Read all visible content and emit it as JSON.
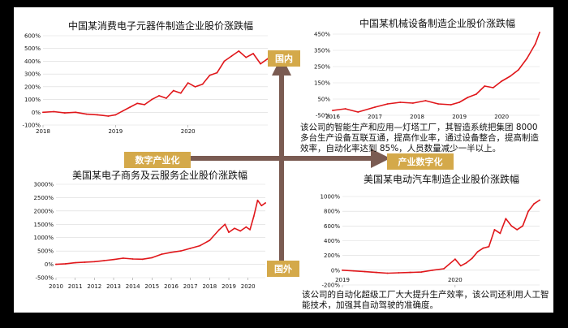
{
  "colors": {
    "series": "#e0171b",
    "axes_arrow": "#7a5b52",
    "tag_bg": "#d4a94a",
    "grid": "#d9d9d9"
  },
  "axis_labels": {
    "north": "国内",
    "south": "国外",
    "west": "数字产业化",
    "east": "产业数字化"
  },
  "captions": {
    "top_right": "该公司的智能生产和应用—灯塔工厂，其智造系统把集团 8000 多台生产设备互联互通，提高作业率，通过设备整合，提高制造效率，自动化率达到 85%，人员数量减少一半以上。",
    "bottom_right": "该公司的自动化超级工厂大大提升生产效率，该公司还利用人工智能技术，加强其自动驾驶的准确度。"
  },
  "chart_data": [
    {
      "id": "tl",
      "type": "line",
      "title": "中国某消费电子元器件制造企业股价涨跌幅",
      "xlabel": "",
      "ylabel": "",
      "x_ticks": [
        {
          "label": "2018",
          "x": 2018.0
        },
        {
          "label": "2019",
          "x": 2019.0
        },
        {
          "label": "2020",
          "x": 2020.0
        }
      ],
      "xlim": [
        2018.0,
        2021.1
      ],
      "y_ticks": [
        -100,
        0,
        100,
        200,
        300,
        400,
        500,
        600
      ],
      "y_tick_labels": [
        "-100%",
        "0%",
        "100%",
        "200%",
        "300%",
        "400%",
        "500%",
        "600%"
      ],
      "ylim": [
        -100,
        600
      ],
      "grid": true,
      "series": [
        {
          "x": [
            2018.0,
            2018.15,
            2018.3,
            2018.45,
            2018.6,
            2018.75,
            2018.9,
            2019.0,
            2019.1,
            2019.2,
            2019.3,
            2019.4,
            2019.5,
            2019.6,
            2019.7,
            2019.8,
            2019.9,
            2020.0,
            2020.1,
            2020.2,
            2020.3,
            2020.4,
            2020.5,
            2020.6,
            2020.7,
            2020.8,
            2020.9,
            2021.0,
            2021.1
          ],
          "y": [
            0,
            5,
            -5,
            0,
            -15,
            -20,
            -30,
            -20,
            10,
            40,
            70,
            60,
            100,
            130,
            110,
            170,
            150,
            230,
            200,
            220,
            290,
            310,
            400,
            440,
            480,
            430,
            460,
            380,
            420
          ]
        }
      ]
    },
    {
      "id": "tr",
      "type": "line",
      "title": "中国某机械设备制造企业股价涨跌幅",
      "xlabel": "",
      "ylabel": "",
      "x_ticks": [
        {
          "label": "2016",
          "x": 2016.0
        },
        {
          "label": "2017",
          "x": 2017.0
        },
        {
          "label": "2018",
          "x": 2018.0
        },
        {
          "label": "2019",
          "x": 2019.0
        },
        {
          "label": "2020",
          "x": 2020.0
        }
      ],
      "xlim": [
        2016.0,
        2020.9
      ],
      "y_ticks": [
        -50,
        50,
        150,
        250,
        350,
        450
      ],
      "y_tick_labels": [
        "-50%",
        "50%",
        "150%",
        "250%",
        "350%",
        "450%"
      ],
      "ylim": [
        -50,
        480
      ],
      "grid": true,
      "series": [
        {
          "x": [
            2016.0,
            2016.3,
            2016.6,
            2017.0,
            2017.3,
            2017.6,
            2017.9,
            2018.2,
            2018.5,
            2018.8,
            2019.0,
            2019.2,
            2019.4,
            2019.6,
            2019.8,
            2020.0,
            2020.2,
            2020.4,
            2020.6,
            2020.8,
            2020.9
          ],
          "y": [
            -20,
            -10,
            -30,
            0,
            20,
            30,
            25,
            40,
            20,
            15,
            30,
            60,
            80,
            130,
            120,
            160,
            190,
            230,
            300,
            390,
            460
          ]
        }
      ]
    },
    {
      "id": "bl",
      "type": "line",
      "title": "美国某电子商务及云服务企业股价涨跌幅",
      "xlabel": "",
      "ylabel": "",
      "x_ticks": [
        {
          "label": "2010",
          "x": 2010.0
        },
        {
          "label": "2011",
          "x": 2011.0
        },
        {
          "label": "2012",
          "x": 2012.0
        },
        {
          "label": "2013",
          "x": 2013.0
        },
        {
          "label": "2014",
          "x": 2014.0
        },
        {
          "label": "2015",
          "x": 2015.0
        },
        {
          "label": "2016",
          "x": 2016.0
        },
        {
          "label": "2017",
          "x": 2017.0
        },
        {
          "label": "2018",
          "x": 2018.0
        },
        {
          "label": "2019",
          "x": 2019.0
        },
        {
          "label": "2020",
          "x": 2020.0
        }
      ],
      "xlim": [
        2010.0,
        2020.9
      ],
      "y_ticks": [
        -500,
        0,
        500,
        1000,
        1500,
        2000,
        2500,
        3000
      ],
      "y_tick_labels": [
        "-500%",
        "0%",
        "500%",
        "1000%",
        "1500%",
        "2000%",
        "2500%",
        "3000%"
      ],
      "ylim": [
        -500,
        3000
      ],
      "grid": true,
      "series": [
        {
          "x": [
            2010.0,
            2010.5,
            2011.0,
            2011.5,
            2012.0,
            2012.5,
            2013.0,
            2013.5,
            2014.0,
            2014.5,
            2015.0,
            2015.5,
            2016.0,
            2016.5,
            2017.0,
            2017.5,
            2018.0,
            2018.5,
            2018.8,
            2019.0,
            2019.3,
            2019.6,
            2019.9,
            2020.1,
            2020.3,
            2020.5,
            2020.7,
            2020.9
          ],
          "y": [
            0,
            20,
            60,
            80,
            100,
            140,
            180,
            230,
            200,
            190,
            250,
            380,
            450,
            500,
            600,
            700,
            900,
            1300,
            1500,
            1200,
            1350,
            1250,
            1400,
            1300,
            1800,
            2400,
            2200,
            2300
          ]
        }
      ]
    },
    {
      "id": "br",
      "type": "line",
      "title": "美国某电动汽车制造企业股价涨跌幅",
      "xlabel": "",
      "ylabel": "",
      "x_ticks": [
        {
          "label": "2019",
          "x": 2019.0
        },
        {
          "label": "2020",
          "x": 2020.0
        }
      ],
      "xlim": [
        2019.0,
        2020.75
      ],
      "y_ticks": [
        -200,
        0,
        200,
        400,
        600,
        800,
        1000
      ],
      "y_tick_labels": [
        "-200%",
        "0%",
        "200%",
        "400%",
        "600%",
        "800%",
        "1000%"
      ],
      "ylim": [
        -200,
        1000
      ],
      "grid": true,
      "series": [
        {
          "x": [
            2019.0,
            2019.1,
            2019.2,
            2019.3,
            2019.4,
            2019.5,
            2019.6,
            2019.7,
            2019.8,
            2019.9,
            2020.0,
            2020.05,
            2020.1,
            2020.15,
            2020.2,
            2020.25,
            2020.3,
            2020.35,
            2020.4,
            2020.45,
            2020.5,
            2020.55,
            2020.6,
            2020.65,
            2020.7,
            2020.75
          ],
          "y": [
            0,
            -10,
            -20,
            -30,
            -40,
            -35,
            -30,
            -25,
            0,
            20,
            150,
            60,
            100,
            160,
            250,
            300,
            320,
            550,
            500,
            700,
            600,
            550,
            600,
            800,
            900,
            950
          ]
        }
      ]
    }
  ]
}
